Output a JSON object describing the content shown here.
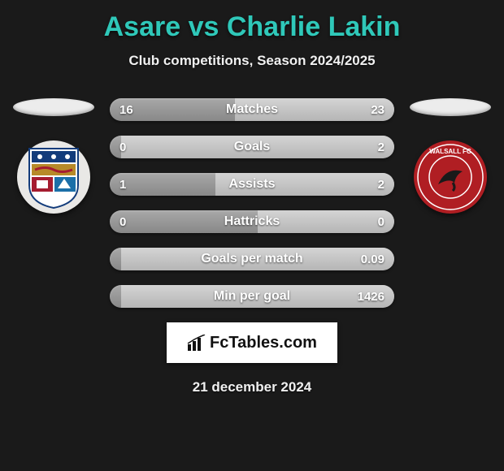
{
  "title_color": "#2fc8b9",
  "title_parts": {
    "p1": "Asare",
    "vs": "vs",
    "p2": "Charlie Lakin"
  },
  "subtitle": "Club competitions, Season 2024/2025",
  "date": "21 december 2024",
  "players": {
    "left": {
      "oval_color": "#ececec",
      "crest_bg": "#e9e8e6",
      "crest_svg_colors": {
        "shield": "#a51c30",
        "top": "#133c7b",
        "mid": "#b78a28"
      }
    },
    "right": {
      "oval_color": "#ececec",
      "crest_bg": "#b01e23",
      "crest_svg_colors": {
        "ring": "#ffffff",
        "swift": "#1a1a1a",
        "bg": "#b01e23"
      }
    }
  },
  "stat_bar": {
    "track_dark": "#8a8a8a",
    "bar_right_light": "#c8c8c8",
    "left_tint": "#6fd6cb"
  },
  "rows": [
    {
      "label": "Matches",
      "left": "16",
      "right": "23",
      "rw": 56
    },
    {
      "label": "Goals",
      "left": "0",
      "right": "2",
      "rw": 96
    },
    {
      "label": "Assists",
      "left": "1",
      "right": "2",
      "rw": 63
    },
    {
      "label": "Hattricks",
      "left": "0",
      "right": "0",
      "rw": 48
    },
    {
      "label": "Goals per match",
      "left": "",
      "right": "0.09",
      "rw": 96
    },
    {
      "label": "Min per goal",
      "left": "",
      "right": "1426",
      "rw": 96
    }
  ],
  "logo": {
    "text": "FcTables.com"
  }
}
